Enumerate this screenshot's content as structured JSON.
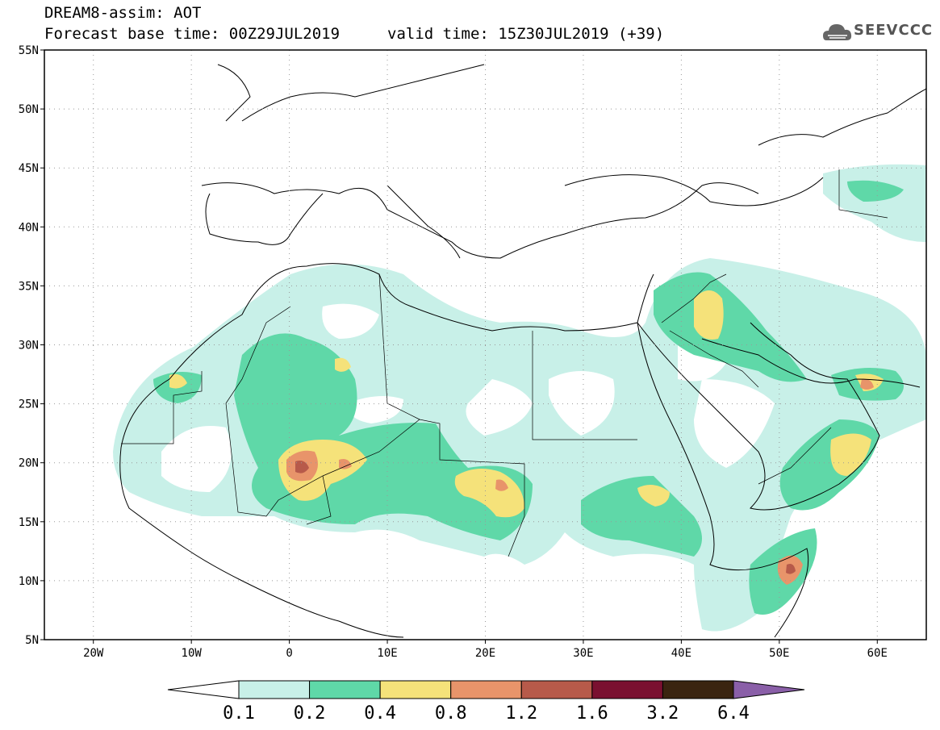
{
  "header": {
    "title": "DREAM8-assim: AOT",
    "base_time_label": "Forecast base time: 00Z29JUL2019",
    "valid_time_label": "valid time: 15Z30JUL2019 (+39)",
    "logo_text": "SEEVCCC"
  },
  "map": {
    "lat_labels": [
      "55N",
      "50N",
      "45N",
      "40N",
      "35N",
      "30N",
      "25N",
      "20N",
      "15N",
      "10N",
      "5N"
    ],
    "lon_labels": [
      "20W",
      "10W",
      "0",
      "10E",
      "20E",
      "30E",
      "40E",
      "50E",
      "60E"
    ],
    "lon_range": [
      -25,
      65
    ],
    "lat_range": [
      5,
      55
    ],
    "gridlines": true,
    "variable": "AOT"
  },
  "colorbar": {
    "labels": [
      "0.1",
      "0.2",
      "0.4",
      "0.8",
      "1.2",
      "1.6",
      "3.2",
      "6.4"
    ],
    "colors": [
      "#ffffff",
      "#c8f0e8",
      "#5fd8a8",
      "#f5e27a",
      "#e8946a",
      "#b75a4a",
      "#7a1030",
      "#3a2410",
      "#8a5fa8"
    ]
  }
}
